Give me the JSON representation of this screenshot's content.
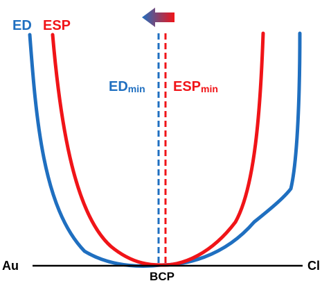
{
  "labels": {
    "ed": "ED",
    "esp": "ESP",
    "ed_min_main": "ED",
    "ed_min_sub": "min",
    "esp_min_main": "ESP",
    "esp_min_sub": "min",
    "atom_left": "Au",
    "atom_right": "Cl",
    "bcp": "BCP"
  },
  "colors": {
    "ed": "#1f6fc0",
    "esp": "#f01418",
    "axis": "#000000"
  },
  "arrow": {
    "direction": "left",
    "gradient_from": "#f01418",
    "gradient_to": "#1f6fc0"
  }
}
